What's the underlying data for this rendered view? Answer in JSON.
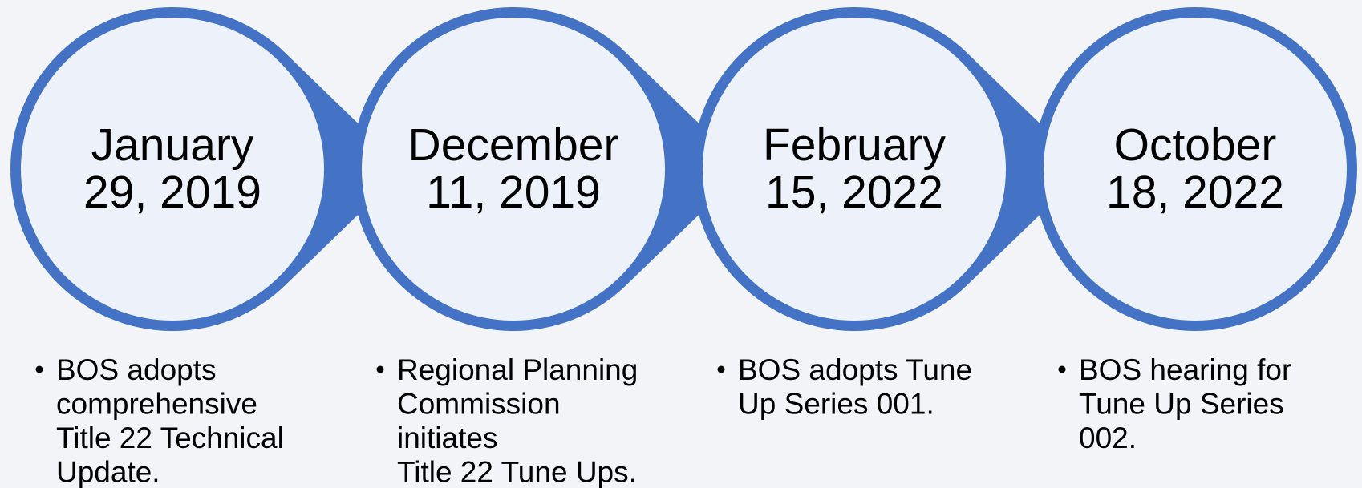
{
  "timeline": {
    "items": [
      {
        "date": [
          "January",
          "29, 2019"
        ],
        "notes": [
          "BOS adopts",
          "comprehensive",
          "Title 22 Technical",
          "Update."
        ]
      },
      {
        "date": [
          "December",
          "11, 2019"
        ],
        "notes": [
          "Regional Planning",
          "Commission",
          "initiates",
          "Title 22 Tune Ups."
        ]
      },
      {
        "date": [
          "February",
          "15, 2022"
        ],
        "notes": [
          "BOS adopts Tune",
          "Up Series 001."
        ]
      },
      {
        "date": [
          "October",
          "18, 2022"
        ],
        "notes": [
          "BOS hearing for",
          "Tune Up Series",
          "002."
        ]
      }
    ]
  }
}
